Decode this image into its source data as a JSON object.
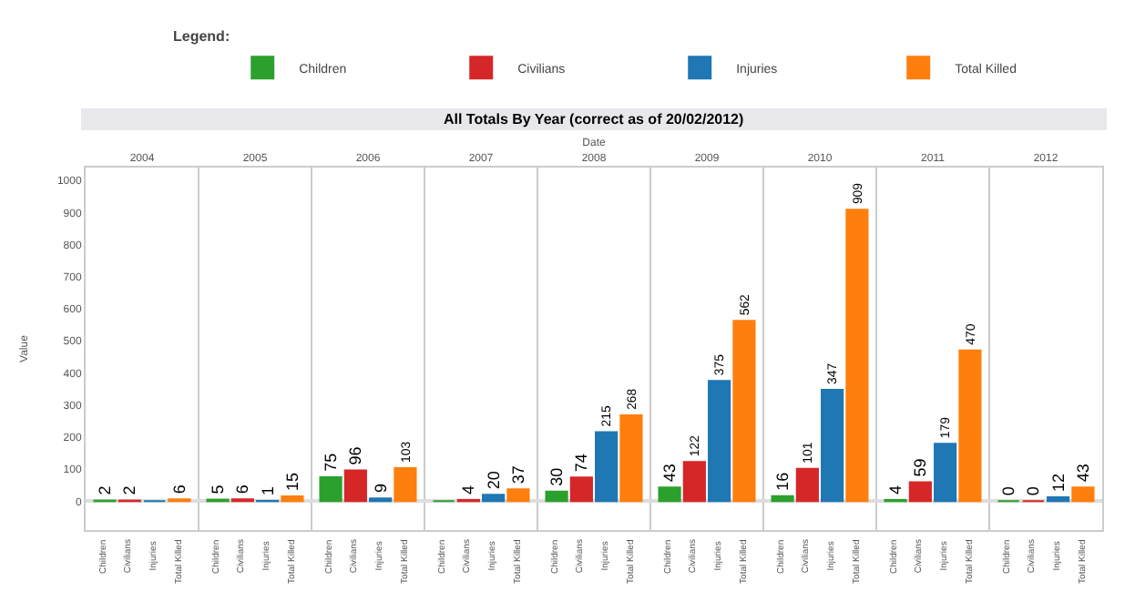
{
  "chart_data": {
    "type": "bar",
    "title": "All Totals By Year (correct as of 20/02/2012)",
    "xlabel": "Date",
    "ylabel": "Value",
    "legend_title": "Legend:",
    "legend": "top right",
    "grid": "x",
    "data_labels": true,
    "categories": [
      "2004",
      "2005",
      "2006",
      "2007",
      "2008",
      "2009",
      "2010",
      "2011",
      "2012"
    ],
    "series": [
      {
        "name": "Children",
        "color": "#2ca02c",
        "values": [
          2,
          5,
          75,
          0,
          30,
          43,
          16,
          4,
          0
        ],
        "value_labels": [
          "2",
          "5",
          "75",
          null,
          "30",
          "43",
          "16",
          "4",
          "0"
        ]
      },
      {
        "name": "Civilians",
        "color": "#d62728",
        "values": [
          2,
          6,
          96,
          4,
          74,
          122,
          101,
          59,
          0
        ]
      },
      {
        "name": "Injuries",
        "color": "#1f77b4",
        "values": [
          0,
          1,
          9,
          20,
          215,
          375,
          347,
          179,
          12
        ],
        "value_labels": [
          null,
          "1",
          "9",
          "20",
          "215",
          "375",
          "347",
          "179",
          "12"
        ]
      },
      {
        "name": "Total Killed",
        "color": "#ff7f0e",
        "values": [
          6,
          15,
          103,
          37,
          268,
          562,
          909,
          470,
          43
        ]
      }
    ],
    "ylim": [
      -90,
      1040
    ],
    "yticks": [
      0,
      100,
      200,
      300,
      400,
      500,
      600,
      700,
      800,
      900,
      1000
    ]
  }
}
